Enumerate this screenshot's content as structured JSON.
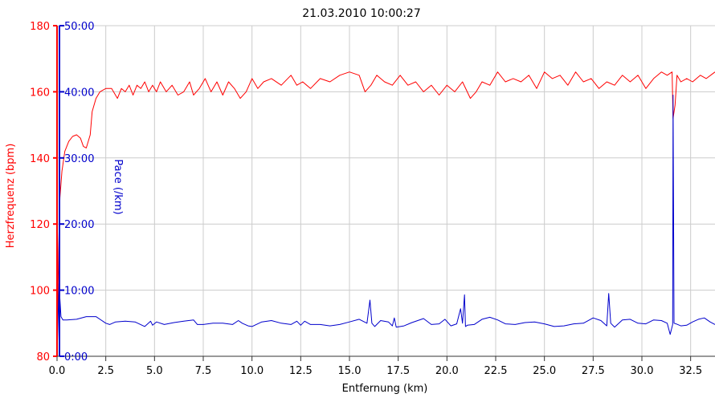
{
  "chart_data": {
    "type": "line",
    "title": "21.03.2010 10:00:27",
    "xlabel": "Entfernung (km)",
    "xlim": [
      0,
      33.75
    ],
    "x_ticks": [
      "0.0",
      "2.5",
      "5.0",
      "7.5",
      "10.0",
      "12.5",
      "15.0",
      "17.5",
      "20.0",
      "22.5",
      "25.0",
      "27.5",
      "30.0",
      "32.5"
    ],
    "y_left": {
      "label": "Herzfrequenz (bpm)",
      "ylim": [
        80,
        180
      ],
      "ticks": [
        "80",
        "100",
        "120",
        "140",
        "160",
        "180"
      ],
      "color": "#ff0000"
    },
    "y_right": {
      "label": "Pace (/km)",
      "ylim": [
        0,
        50
      ],
      "ticks": [
        "0:00",
        "10:00",
        "20:00",
        "30:00",
        "40:00",
        "50:00"
      ],
      "color": "#0000cc"
    },
    "grid": true,
    "series": [
      {
        "name": "Herzfrequenz (bpm)",
        "axis": "left",
        "color": "#ff0000",
        "x": [
          0.0,
          0.08,
          0.15,
          0.25,
          0.4,
          0.6,
          0.8,
          1.0,
          1.2,
          1.35,
          1.5,
          1.7,
          1.8,
          2.0,
          2.2,
          2.5,
          2.8,
          3.1,
          3.3,
          3.5,
          3.7,
          3.9,
          4.1,
          4.3,
          4.5,
          4.7,
          4.9,
          5.1,
          5.3,
          5.6,
          5.9,
          6.2,
          6.5,
          6.8,
          7.0,
          7.3,
          7.6,
          7.9,
          8.2,
          8.5,
          8.8,
          9.1,
          9.4,
          9.7,
          10.0,
          10.3,
          10.6,
          11.0,
          11.5,
          12.0,
          12.3,
          12.6,
          13.0,
          13.5,
          14.0,
          14.5,
          15.0,
          15.5,
          15.8,
          16.1,
          16.4,
          16.8,
          17.2,
          17.6,
          18.0,
          18.4,
          18.8,
          19.2,
          19.6,
          20.0,
          20.4,
          20.8,
          21.2,
          21.5,
          21.8,
          22.2,
          22.6,
          23.0,
          23.4,
          23.8,
          24.2,
          24.6,
          25.0,
          25.4,
          25.8,
          26.2,
          26.6,
          27.0,
          27.4,
          27.8,
          28.2,
          28.6,
          29.0,
          29.4,
          29.8,
          30.2,
          30.6,
          31.0,
          31.3,
          31.55,
          31.6,
          31.7,
          31.8,
          32.0,
          32.3,
          32.6,
          33.0,
          33.3,
          33.75
        ],
        "values": [
          80,
          112,
          128,
          136,
          142,
          145,
          146.5,
          147,
          146,
          143.5,
          143,
          147,
          154,
          158,
          160,
          161,
          161,
          158,
          161,
          160,
          162,
          159,
          162,
          161,
          163,
          160,
          162,
          160,
          163,
          160,
          162,
          159,
          160,
          163,
          159,
          161,
          164,
          160,
          163,
          159,
          163,
          161,
          158,
          160,
          164,
          161,
          163,
          164,
          162,
          165,
          162,
          163,
          161,
          164,
          163,
          165,
          166,
          165,
          160,
          162,
          165,
          163,
          162,
          165,
          162,
          163,
          160,
          162,
          159,
          162,
          160,
          163,
          158,
          160,
          163,
          162,
          166,
          163,
          164,
          163,
          165,
          161,
          166,
          164,
          165,
          162,
          166,
          163,
          164,
          161,
          163,
          162,
          165,
          163,
          165,
          161,
          164,
          166,
          165,
          166,
          152,
          156,
          165,
          163,
          164,
          163,
          165,
          164,
          166
        ]
      },
      {
        "name": "Pace (/km)",
        "axis": "right",
        "color": "#0000cc",
        "x": [
          0.0,
          0.1,
          0.2,
          0.3,
          0.5,
          1.0,
          1.5,
          2.0,
          2.5,
          2.7,
          3.0,
          3.5,
          4.0,
          4.5,
          4.8,
          4.9,
          5.1,
          5.5,
          6.0,
          6.5,
          7.0,
          7.2,
          7.5,
          8.0,
          8.5,
          9.0,
          9.3,
          9.5,
          9.8,
          10.0,
          10.5,
          11.0,
          11.5,
          12.0,
          12.3,
          12.5,
          12.7,
          13.0,
          13.5,
          14.0,
          14.5,
          15.0,
          15.5,
          15.9,
          16.05,
          16.15,
          16.3,
          16.6,
          17.0,
          17.2,
          17.3,
          17.4,
          17.8,
          18.2,
          18.8,
          19.2,
          19.6,
          19.9,
          20.2,
          20.5,
          20.7,
          20.8,
          20.9,
          20.95,
          21.05,
          21.4,
          21.8,
          22.2,
          22.6,
          23.0,
          23.5,
          24.0,
          24.5,
          25.0,
          25.5,
          26.0,
          26.5,
          27.0,
          27.5,
          27.9,
          28.2,
          28.3,
          28.4,
          28.6,
          29.0,
          29.4,
          29.8,
          30.2,
          30.6,
          31.0,
          31.3,
          31.45,
          31.58,
          31.6,
          31.65,
          31.75,
          32.0,
          32.3,
          32.6,
          32.9,
          33.2,
          33.5,
          33.75
        ],
        "values": [
          0,
          11,
          6,
          5.5,
          5.5,
          5.6,
          6,
          6,
          5,
          4.8,
          5.2,
          5.3,
          5.2,
          4.5,
          5.3,
          4.7,
          5.2,
          4.8,
          5.1,
          5.3,
          5.5,
          4.8,
          4.8,
          5,
          5,
          4.8,
          5.4,
          5,
          4.6,
          4.5,
          5.2,
          5.4,
          5,
          4.8,
          5.3,
          4.7,
          5.3,
          4.8,
          4.8,
          4.6,
          4.8,
          5.2,
          5.6,
          5,
          8.5,
          5,
          4.5,
          5.4,
          5.2,
          4.6,
          5.8,
          4.4,
          4.6,
          5.1,
          5.7,
          4.8,
          4.9,
          5.6,
          4.6,
          4.9,
          7.2,
          5,
          9.3,
          4.5,
          4.7,
          4.8,
          5.6,
          5.9,
          5.5,
          4.9,
          4.8,
          5.1,
          5.2,
          4.9,
          4.5,
          4.6,
          4.9,
          5,
          5.8,
          5.4,
          4.6,
          9.5,
          5,
          4.4,
          5.5,
          5.6,
          5,
          4.9,
          5.5,
          5.4,
          5,
          3.3,
          4.8,
          39.5,
          5,
          4.9,
          4.6,
          4.7,
          5.2,
          5.6,
          5.8,
          5.2,
          4.8
        ]
      }
    ]
  }
}
